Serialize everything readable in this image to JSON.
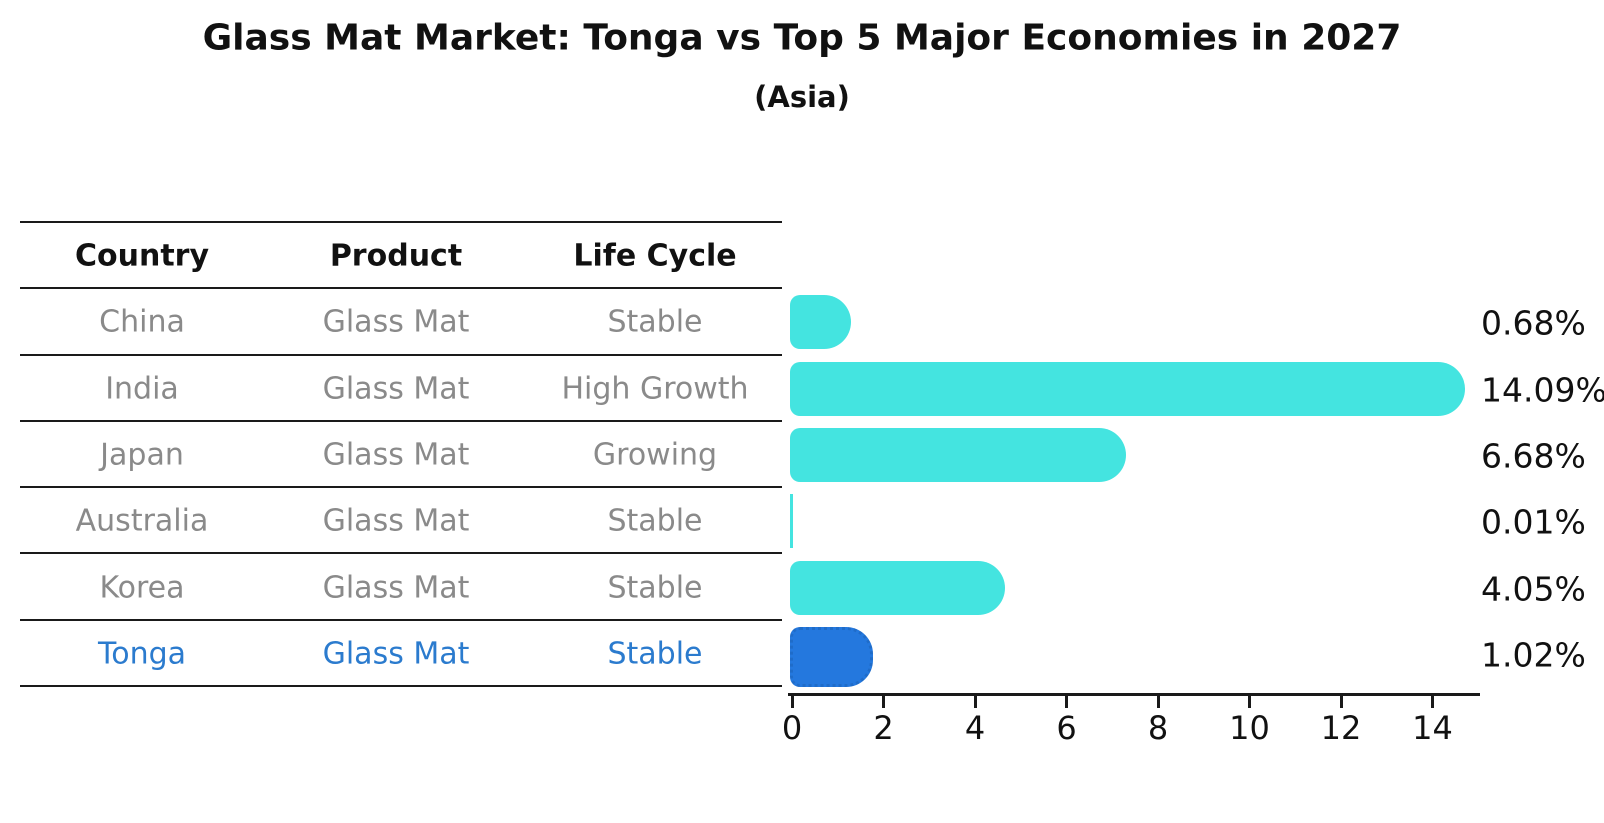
{
  "title": "Glass Mat Market: Tonga vs Top 5 Major Economies in 2027",
  "subtitle": "(Asia)",
  "table": {
    "headers": [
      "Country",
      "Product",
      "Life Cycle"
    ],
    "rows": [
      {
        "country": "China",
        "product": "Glass Mat",
        "life_cycle": "Stable",
        "highlight": false
      },
      {
        "country": "India",
        "product": "Glass Mat",
        "life_cycle": "High Growth",
        "highlight": false
      },
      {
        "country": "Japan",
        "product": "Glass Mat",
        "life_cycle": "Growing",
        "highlight": false
      },
      {
        "country": "Australia",
        "product": "Glass Mat",
        "life_cycle": "Stable",
        "highlight": false
      },
      {
        "country": "Korea",
        "product": "Glass Mat",
        "life_cycle": "Stable",
        "highlight": false
      },
      {
        "country": "Tonga",
        "product": "Glass Mat",
        "life_cycle": "Stable",
        "highlight": true
      }
    ]
  },
  "chart_data": {
    "type": "bar",
    "orientation": "horizontal",
    "title": "Glass Mat Market: Tonga vs Top 5 Major Economies in 2027",
    "subtitle": "(Asia)",
    "categories": [
      "China",
      "India",
      "Japan",
      "Australia",
      "Korea",
      "Tonga"
    ],
    "values": [
      0.68,
      14.09,
      6.68,
      0.01,
      4.05,
      1.02
    ],
    "value_labels": [
      "0.68%",
      "14.09%",
      "6.68%",
      "0.01%",
      "4.05%",
      "1.02%"
    ],
    "highlight_index": 5,
    "xlabel": "",
    "ylabel": "",
    "xlim": [
      0,
      15
    ],
    "x_ticks": [
      0,
      2,
      4,
      6,
      8,
      10,
      12,
      14
    ],
    "grid": false,
    "legend": false,
    "colors": {
      "bar_default": "#44e4e0",
      "bar_highlight": "#2478de",
      "highlight_text": "#2b7bce",
      "table_text": "#8a8a8a",
      "text": "#111111",
      "line": "#1a1a1a"
    }
  }
}
